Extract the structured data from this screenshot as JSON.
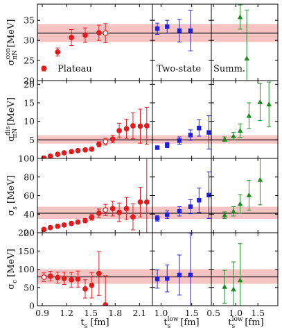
{
  "colors": {
    "red": "#e41a1c",
    "blue": "#1f1fdc",
    "green": "#1e8c1e",
    "band": "#f4b4b4",
    "line": "#000000"
  },
  "labels": {
    "plateau": "Plateau",
    "two_state": "Two-state",
    "summ": "Summ.",
    "x_ts": "t",
    "x_ts_sub": "s",
    "x_unit": "[fm]",
    "x_low_sub": "s",
    "x_low_sup": "low"
  },
  "chart_data": {
    "type": "scatter",
    "x_ticks": {
      "plateau": {
        "ticks": [
          0.9,
          1.2,
          1.5,
          1.8,
          2.1
        ],
        "range": [
          0.84,
          2.26
        ]
      },
      "two_state": {
        "ticks": [
          1.0,
          1.5
        ],
        "range": [
          0.86,
          1.82
        ]
      },
      "summ": {
        "ticks": [
          0.5,
          1.0,
          1.5
        ],
        "range": [
          0.45,
          1.95
        ]
      }
    },
    "rows": [
      {
        "ylabel": "σ_πN^con [MeV]",
        "ylabel_main": "σ",
        "ylabel_sub": "πN",
        "ylabel_sup": "con",
        "ylabel_unit": "[MeV]",
        "ylim": [
          20,
          39
        ],
        "yticks": [
          20,
          25,
          30,
          35
        ],
        "band": [
          29.6,
          34.0
        ],
        "central": 31.8,
        "plateau": {
          "x": [
            0.92,
            1.09,
            1.26,
            1.43,
            1.6,
            1.68
          ],
          "y": [
            23.0,
            27.1,
            30.7,
            31.3,
            31.9,
            31.8
          ],
          "err": [
            0.6,
            1.0,
            2.0,
            1.8,
            1.9,
            2.4
          ],
          "open_index": 5
        },
        "two_state": {
          "x": [
            0.94,
            1.1,
            1.3,
            1.48
          ],
          "y": [
            32.9,
            33.4,
            32.4,
            32.4
          ],
          "err": [
            1.4,
            1.6,
            2.8,
            5.0
          ]
        },
        "summ": {
          "x": [
            1.1,
            1.25
          ],
          "y": [
            35.8,
            25.5
          ],
          "err": [
            3.0,
            12.0
          ]
        }
      },
      {
        "ylabel": "σ_πN^dis [MeV]",
        "ylabel_main": "σ",
        "ylabel_sub": "πN",
        "ylabel_sup": "dis",
        "ylabel_unit": "[MeV]",
        "ylim": [
          0,
          21
        ],
        "yticks": [
          0,
          5,
          10,
          15,
          20
        ],
        "band": [
          4.0,
          6.2
        ],
        "central": 5.0,
        "plateau": {
          "x": [
            0.92,
            1.0,
            1.09,
            1.17,
            1.26,
            1.34,
            1.43,
            1.51,
            1.6,
            1.68,
            1.77,
            1.85,
            1.94,
            2.02,
            2.11,
            2.19
          ],
          "y": [
            0.1,
            0.6,
            1.1,
            1.5,
            1.8,
            2.1,
            2.3,
            2.5,
            3.8,
            4.5,
            5.2,
            7.5,
            8.0,
            8.8,
            8.7,
            8.8
          ],
          "err": [
            0.3,
            0.3,
            0.3,
            0.3,
            0.3,
            0.3,
            0.4,
            0.5,
            0.7,
            0.9,
            1.0,
            2.0,
            2.6,
            3.5,
            4.6,
            5.0
          ],
          "open_index": 9
        },
        "two_state": {
          "x": [
            0.94,
            1.1,
            1.3,
            1.48,
            1.62,
            1.78
          ],
          "y": [
            2.9,
            3.6,
            4.8,
            6.3,
            8.2,
            7.0
          ],
          "err": [
            0.4,
            0.7,
            1.0,
            1.4,
            2.2,
            4.5
          ]
        },
        "summ": {
          "x": [
            0.75,
            0.95,
            1.1,
            1.3,
            1.55,
            1.75
          ],
          "y": [
            5.2,
            6.0,
            7.5,
            11.5,
            15.2,
            14.6
          ],
          "err": [
            0.6,
            1.0,
            1.8,
            3.5,
            5.0,
            6.0
          ]
        }
      },
      {
        "ylabel": "σ_s [MeV]",
        "ylabel_main": "σ",
        "ylabel_sub": "s",
        "ylabel_sup": "",
        "ylabel_unit": "[MeV]",
        "ylim": [
          20,
          100
        ],
        "yticks": [
          20,
          40,
          60,
          80,
          100
        ],
        "band": [
          35.0,
          48.0
        ],
        "central": 41.0,
        "plateau": {
          "x": [
            0.92,
            1.0,
            1.09,
            1.17,
            1.26,
            1.34,
            1.43,
            1.51,
            1.6,
            1.68,
            1.77,
            1.85,
            1.94,
            2.02,
            2.11,
            2.19
          ],
          "y": [
            23.5,
            25.5,
            27.0,
            28.3,
            30.0,
            31.5,
            33.0,
            36.5,
            41.0,
            44.5,
            46.0,
            42.0,
            46.0,
            37.0,
            53.0,
            53.0
          ],
          "err": [
            1.2,
            1.3,
            1.4,
            1.5,
            1.7,
            2.0,
            2.3,
            3.0,
            4.5,
            6.0,
            8.0,
            10.0,
            12.0,
            14.0,
            16.0,
            48.0
          ],
          "open_index": 9
        },
        "two_state": {
          "x": [
            0.94,
            1.1,
            1.3,
            1.48,
            1.62,
            1.78
          ],
          "y": [
            35.5,
            39.5,
            43.0,
            48.0,
            55.0,
            60.5
          ],
          "err": [
            3.0,
            4.0,
            5.0,
            7.5,
            13.0,
            25.0
          ]
        },
        "summ": {
          "x": [
            0.75,
            0.95,
            1.1,
            1.3,
            1.55
          ],
          "y": [
            39.0,
            43.0,
            51.0,
            60.5,
            77.0
          ],
          "err": [
            3.5,
            5.0,
            10.0,
            16.0,
            27.0
          ]
        }
      },
      {
        "ylabel": "σ_c [MeV]",
        "ylabel_main": "σ",
        "ylabel_sub": "c",
        "ylabel_sup": "",
        "ylabel_unit": "[MeV]",
        "ylim": [
          0,
          200
        ],
        "yticks": [
          0,
          50,
          100,
          150,
          200
        ],
        "band": [
          60.0,
          100.0
        ],
        "central": 79.0,
        "plateau": {
          "x": [
            0.92,
            1.0,
            1.09,
            1.17,
            1.26,
            1.34,
            1.43,
            1.51,
            1.6,
            1.68
          ],
          "y": [
            78.0,
            81.0,
            77.0,
            75.0,
            71.0,
            73.0,
            46.0,
            56.0,
            88.0,
            2.0
          ],
          "err": [
            12.0,
            13.0,
            15.0,
            17.0,
            20.0,
            22.0,
            25.0,
            35.0,
            60.0,
            80.0
          ],
          "open_index": 0
        },
        "two_state": {
          "x": [
            0.94,
            1.1,
            1.3,
            1.48
          ],
          "y": [
            73.0,
            75.0,
            84.0,
            84.0
          ],
          "err": [
            25.0,
            37.0,
            55.0,
            115.0
          ]
        },
        "summ": {
          "x": [
            0.75,
            0.95,
            1.1
          ],
          "y": [
            52.0,
            45.0,
            70.0
          ],
          "err": [
            45.0,
            75.0,
            100.0
          ]
        }
      }
    ]
  }
}
